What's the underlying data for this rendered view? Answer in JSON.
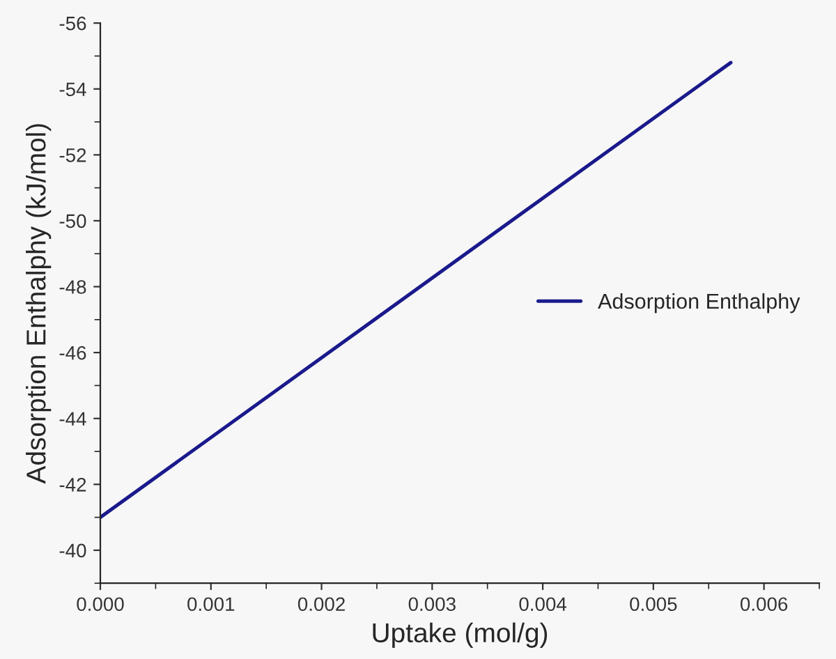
{
  "chart_data": {
    "type": "line",
    "xlabel": "Uptake (mol/g)",
    "ylabel": "Adsorption Enthalphy (kJ/mol)",
    "series": [
      {
        "name": "Adsorption Enthalphy",
        "color": "#1a1a8c",
        "x": [
          0.0,
          0.0057
        ],
        "values": [
          -41.0,
          -54.8
        ]
      }
    ],
    "xlim": [
      0.0,
      0.0065
    ],
    "xticks": [
      {
        "value": 0.0,
        "label": "0.000"
      },
      {
        "value": 0.001,
        "label": "0.001"
      },
      {
        "value": 0.002,
        "label": "0.002"
      },
      {
        "value": 0.003,
        "label": "0.003"
      },
      {
        "value": 0.004,
        "label": "0.004"
      },
      {
        "value": 0.005,
        "label": "0.005"
      },
      {
        "value": 0.006,
        "label": "0.006"
      }
    ],
    "ylim": [
      -39,
      -56
    ],
    "yticks": [
      -40,
      -42,
      -44,
      -46,
      -48,
      -50,
      -52,
      -54,
      -56
    ],
    "legend": "right",
    "grid": false,
    "marker": "none",
    "line_style": "solid"
  }
}
